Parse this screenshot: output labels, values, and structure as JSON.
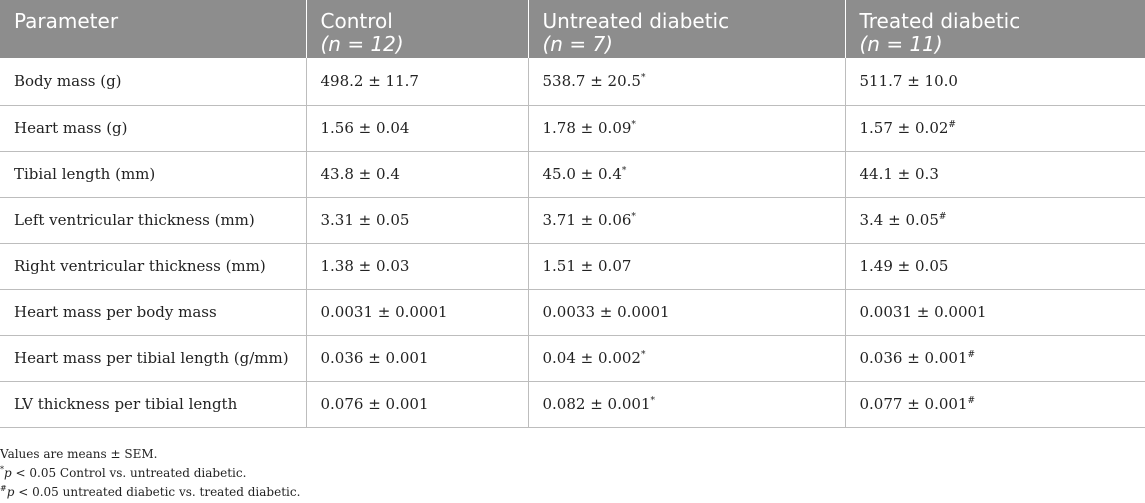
{
  "table": {
    "headers": [
      {
        "label": "Parameter",
        "n": ""
      },
      {
        "label": "Control",
        "n": "(n = 12)"
      },
      {
        "label": "Untreated diabetic",
        "n": "(n = 7)"
      },
      {
        "label": "Treated diabetic",
        "n": "(n = 11)"
      }
    ],
    "rows": [
      {
        "param": "Body mass (g)",
        "control": "498.2 ± 11.7",
        "control_mark": "",
        "untreated": "538.7 ± 20.5",
        "untreated_mark": "*",
        "treated": "511.7 ± 10.0",
        "treated_mark": ""
      },
      {
        "param": "Heart mass (g)",
        "control": "1.56 ± 0.04",
        "control_mark": "",
        "untreated": "1.78 ± 0.09",
        "untreated_mark": "*",
        "treated": "1.57 ± 0.02",
        "treated_mark": "#"
      },
      {
        "param": "Tibial length (mm)",
        "control": "43.8 ± 0.4",
        "control_mark": "",
        "untreated": "45.0 ± 0.4",
        "untreated_mark": "*",
        "treated": "44.1 ± 0.3",
        "treated_mark": ""
      },
      {
        "param": "Left ventricular thickness (mm)",
        "control": "3.31 ± 0.05",
        "control_mark": "",
        "untreated": "3.71 ± 0.06",
        "untreated_mark": "*",
        "treated": "3.4 ± 0.05",
        "treated_mark": "#"
      },
      {
        "param": "Right ventricular thickness (mm)",
        "control": "1.38 ± 0.03",
        "control_mark": "",
        "untreated": "1.51 ± 0.07",
        "untreated_mark": "",
        "treated": "1.49 ± 0.05",
        "treated_mark": ""
      },
      {
        "param": "Heart mass per body mass",
        "control": "0.0031 ± 0.0001",
        "control_mark": "",
        "untreated": "0.0033 ± 0.0001",
        "untreated_mark": "",
        "treated": "0.0031 ± 0.0001",
        "treated_mark": ""
      },
      {
        "param": "Heart mass per tibial length (g/mm)",
        "control": "0.036 ± 0.001",
        "control_mark": "",
        "untreated": "0.04 ± 0.002",
        "untreated_mark": "*",
        "treated": "0.036 ± 0.001",
        "treated_mark": "#"
      },
      {
        "param": "LV thickness per tibial length",
        "control": "0.076 ± 0.001",
        "control_mark": "",
        "untreated": "0.082 ± 0.001",
        "untreated_mark": "*",
        "treated": "0.077 ± 0.001",
        "treated_mark": "#"
      }
    ]
  },
  "footnotes": {
    "values_note": "Values are means ± SEM.",
    "note1_mark": "*",
    "note1_p": "p",
    "note1_text": " < 0.05 Control vs. untreated diabetic.",
    "note2_mark": "#",
    "note2_p": "p",
    "note2_text": " < 0.05 untreated diabetic vs. treated diabetic."
  }
}
